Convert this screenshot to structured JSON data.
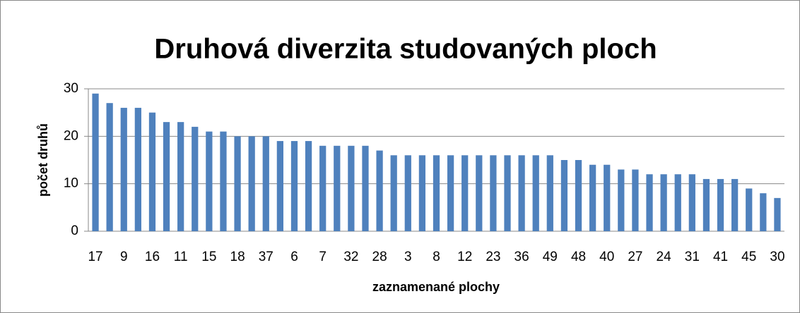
{
  "chart_data": {
    "type": "bar",
    "title": "Druhová diverzita studovaných ploch",
    "x_label": "zaznamenané plochy",
    "y_label": "počet druhů",
    "categories": [
      "17",
      null,
      "9",
      null,
      "16",
      null,
      "11",
      null,
      "15",
      null,
      "18",
      null,
      "37",
      null,
      "6",
      null,
      "7",
      null,
      "32",
      null,
      "28",
      null,
      "3",
      null,
      "8",
      null,
      "12",
      null,
      "23",
      null,
      "36",
      null,
      "49",
      null,
      "48",
      null,
      "40",
      null,
      "27",
      null,
      "24",
      null,
      "31",
      null,
      "41",
      null,
      "45",
      null,
      "30"
    ],
    "values": [
      29,
      27,
      26,
      26,
      25,
      23,
      23,
      22,
      21,
      21,
      20,
      20,
      20,
      19,
      19,
      19,
      18,
      18,
      18,
      18,
      17,
      16,
      16,
      16,
      16,
      16,
      16,
      16,
      16,
      16,
      16,
      16,
      16,
      15,
      15,
      14,
      14,
      13,
      13,
      12,
      12,
      12,
      12,
      11,
      11,
      11,
      9,
      8,
      7
    ],
    "color": "#4f81bd",
    "ylim": [
      0,
      30
    ],
    "yticks": [
      0,
      10,
      20,
      30
    ],
    "grid": true
  }
}
